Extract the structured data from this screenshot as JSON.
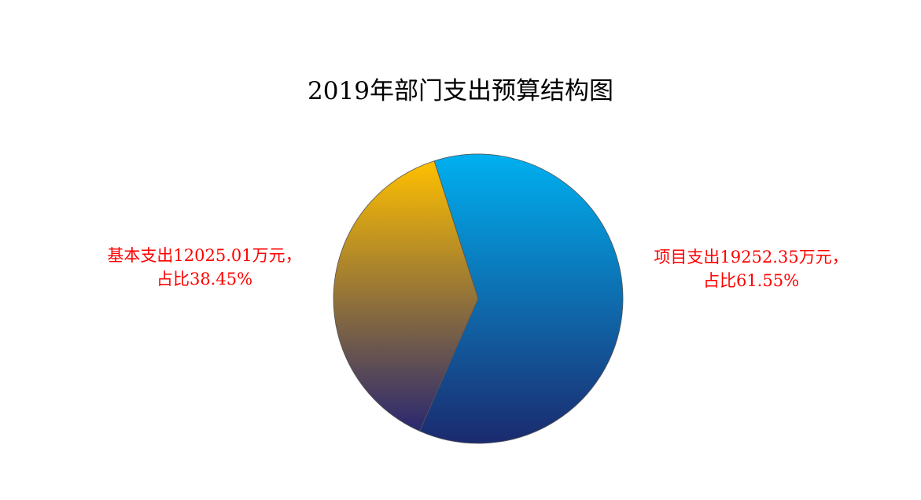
{
  "chart_data": {
    "type": "pie",
    "title": "2019年部门支出预算结构图",
    "series": [
      {
        "name": "项目支出",
        "value": 19252.35,
        "percent": 61.55,
        "label_lines": [
          "项目支出19252.35万元，",
          "占比61.55%"
        ],
        "gradient": [
          "#00b0f0",
          "#1b2a6e"
        ]
      },
      {
        "name": "基本支出",
        "value": 12025.01,
        "percent": 38.45,
        "label_lines": [
          "基本支出12025.01万元，",
          "占比38.45%"
        ],
        "gradient": [
          "#ffc000",
          "#2a2870"
        ]
      }
    ],
    "unit": "万元",
    "label_color": "#ff0000",
    "start_angle_deg": -17.7,
    "direction": "clockwise",
    "legend": "none"
  }
}
